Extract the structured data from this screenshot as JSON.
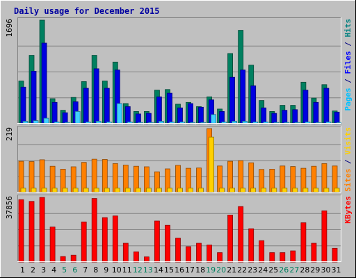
{
  "chart_data": {
    "type": "bar",
    "title": "Daily usage for December 2015",
    "categories": [
      "1",
      "2",
      "3",
      "4",
      "5",
      "6",
      "7",
      "8",
      "9",
      "10",
      "11",
      "12",
      "13",
      "14",
      "15",
      "16",
      "17",
      "18",
      "19",
      "20",
      "21",
      "22",
      "23",
      "24",
      "25",
      "26",
      "27",
      "28",
      "29",
      "30",
      "31"
    ],
    "weekend_days": [
      "5",
      "6",
      "12",
      "13",
      "19",
      "20",
      "26",
      "27"
    ],
    "panels": [
      {
        "id": "hits-files-pages",
        "max_label": "1696",
        "ymax": 1696,
        "label_parts": [
          {
            "text": "Pages",
            "color": "#00c0ff"
          },
          {
            "text": " / ",
            "color": "#000080"
          },
          {
            "text": "Files",
            "color": "#0000ff"
          },
          {
            "text": " / ",
            "color": "#000080"
          },
          {
            "text": "Hits",
            "color": "#008080"
          }
        ],
        "series": [
          {
            "name": "Hits",
            "color": "#008060",
            "values": [
              700,
              1120,
              1696,
              410,
              220,
              430,
              690,
              1120,
              700,
              1010,
              330,
              200,
              200,
              550,
              560,
              320,
              350,
              280,
              440,
              240,
              1150,
              1530,
              960,
              380,
              200,
              300,
              300,
              680,
              420,
              640,
              210
            ]
          },
          {
            "name": "Files",
            "color": "#0000e0",
            "values": [
              600,
              860,
              1320,
              350,
              180,
              360,
              580,
              900,
              580,
              880,
              280,
              160,
              170,
              440,
              500,
              260,
              330,
              270,
              390,
              200,
              760,
              880,
              620,
              260,
              170,
              220,
              230,
              550,
              350,
              580,
              190
            ]
          },
          {
            "name": "Pages",
            "color": "#40d0ff",
            "values": [
              40,
              50,
              90,
              30,
              20,
              200,
              30,
              40,
              30,
              330,
              30,
              20,
              20,
              40,
              30,
              30,
              20,
              20,
              150,
              30,
              40,
              40,
              30,
              30,
              20,
              20,
              20,
              30,
              20,
              30,
              20
            ]
          }
        ]
      },
      {
        "id": "visits-sites",
        "max_label": "219",
        "ymax": 219,
        "label_parts": [
          {
            "text": "Sites",
            "color": "#ff8000"
          },
          {
            "text": " / ",
            "color": "#000080"
          },
          {
            "text": "Visits",
            "color": "#ffd000"
          }
        ],
        "series": [
          {
            "name": "Visits",
            "color": "#ff8000",
            "values": [
              107,
              106,
              112,
              90,
              80,
              88,
              103,
              114,
              113,
              99,
              94,
              90,
              88,
              71,
              81,
              93,
              83,
              84,
              219,
              91,
              107,
              109,
              102,
              79,
              80,
              91,
              89,
              83,
              90,
              99,
              91
            ]
          },
          {
            "name": "Sites",
            "color": "#ffd000",
            "values": [
              15,
              15,
              15,
              15,
              15,
              15,
              15,
              15,
              15,
              15,
              15,
              15,
              15,
              15,
              15,
              15,
              15,
              15,
              190,
              15,
              15,
              15,
              15,
              15,
              15,
              15,
              15,
              15,
              15,
              15,
              15
            ]
          }
        ]
      },
      {
        "id": "kbytes",
        "max_label": "37856",
        "ymax": 37856,
        "label_parts": [
          {
            "text": "KBytes",
            "color": "#ff0000"
          }
        ],
        "series": [
          {
            "name": "KBytes",
            "color": "#ff0000",
            "values": [
              36500,
              35500,
              37856,
              20500,
              3200,
              4000,
              23500,
              37200,
              26000,
              27000,
              11000,
              6000,
              3000,
              24000,
              21500,
              14000,
              9000,
              11000,
              10000,
              5500,
              27500,
              32500,
              19500,
              12500,
              5500,
              5500,
              6500,
              23000,
              11000,
              30000,
              8000
            ]
          }
        ]
      }
    ]
  }
}
